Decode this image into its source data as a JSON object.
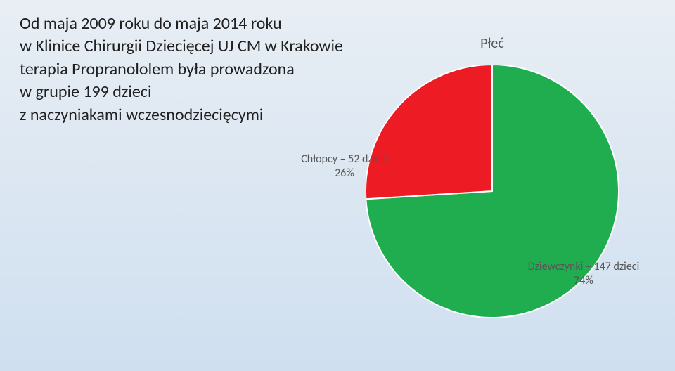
{
  "text": {
    "line1": "Od maja 2009 roku do maja 2014 roku",
    "line2": "w Klinice Chirurgii Dziecięcej UJ CM w Krakowie",
    "line3": "terapia Propranololem była prowadzona",
    "line4": " w grupie 199 dzieci",
    "line5": "z naczyniakami wczesnodziecięcymi"
  },
  "chart": {
    "type": "pie",
    "title": "Płeć",
    "title_fontsize": 20,
    "title_color": "#575757",
    "background_color": "transparent",
    "label_fontsize": 16,
    "label_color": "#575757",
    "radius": 180,
    "start_angle_deg": -90,
    "slices": [
      {
        "name": "Chłopcy",
        "count": 52,
        "percent": 26,
        "label_line1": "Chłopcy – 52 dzieci",
        "label_line2": "26%",
        "color": "#ed1c24",
        "border_color": "#ffffff",
        "border_width": 2
      },
      {
        "name": "Dziewczynki",
        "count": 147,
        "percent": 74,
        "label_line1": "Dziewczynki – 147 dzieci",
        "label_line2": "74%",
        "color": "#1fad4f",
        "border_color": "#ffffff",
        "border_width": 2
      }
    ]
  }
}
